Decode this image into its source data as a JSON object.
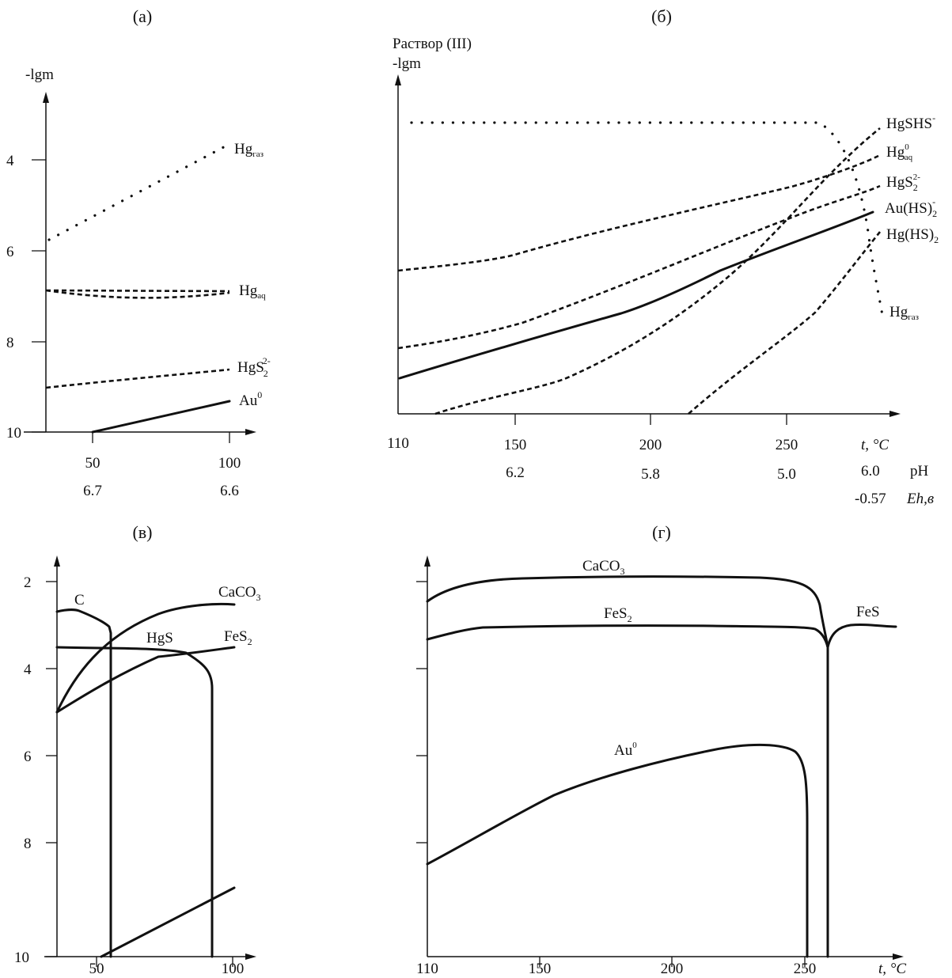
{
  "chart_data": [
    {
      "panel": "(a)",
      "type": "line",
      "ylabel": "-lgm",
      "y_ticks": [
        "4",
        "6",
        "8",
        "10"
      ],
      "x_ticks": [
        "50",
        "100"
      ],
      "ph_ticks": [
        "6.7",
        "6.6"
      ],
      "ylim": [
        10,
        3
      ],
      "series": [
        {
          "label": "Hg",
          "sub": "газ",
          "sup": "",
          "style": "dotted",
          "x": [
            30,
            100
          ],
          "y": [
            6.3,
            3.8
          ]
        },
        {
          "label": "Hg",
          "sub": "aq",
          "sup": "",
          "style": "dashed",
          "x": [
            30,
            100
          ],
          "y": [
            7.35,
            6.95
          ]
        },
        {
          "label": "HgS",
          "sub": "2",
          "sup": "2-",
          "style": "dashed",
          "x": [
            30,
            100
          ],
          "y": [
            9.0,
            8.65
          ]
        },
        {
          "label": "Au",
          "sub": "",
          "sup": "0",
          "style": "solid",
          "x": [
            50,
            100
          ],
          "y": [
            10.0,
            9.35
          ]
        }
      ]
    },
    {
      "panel": "(б)",
      "type": "line",
      "header": "Раствор (III)",
      "ylabel": "-lgm",
      "x_ticks": [
        "110",
        "150",
        "200",
        "250"
      ],
      "x_unit": "t, °C",
      "ph_ticks": [
        "6.2",
        "5.8",
        "5.0"
      ],
      "ph_end": "6.0",
      "ph_label": "pH",
      "eh_value": "-0.57",
      "eh_label": "Eh,в",
      "series": [
        {
          "label": "HgSHS",
          "sub": "",
          "sup": "-",
          "style": "dashed"
        },
        {
          "label": "Hg",
          "sub": "aq",
          "sup": "0",
          "style": "dashed"
        },
        {
          "label": "HgS",
          "sub": "2",
          "sup": "2-",
          "style": "dashed"
        },
        {
          "label": "Au(HS)",
          "sub": "2",
          "sup": "-",
          "style": "solid"
        },
        {
          "label": "Hg(HS)",
          "sub": "2",
          "sup": "",
          "style": "dashed"
        },
        {
          "label": "Hg",
          "sub": "газ",
          "sup": "",
          "style": "dotted"
        }
      ]
    },
    {
      "panel": "(в)",
      "type": "line",
      "y_ticks": [
        "2",
        "4",
        "6",
        "8",
        "10"
      ],
      "x_ticks": [
        "50",
        "100"
      ],
      "ylim": [
        10,
        1.5
      ],
      "series": [
        {
          "label": "C",
          "style": "solid"
        },
        {
          "label": "CaCO",
          "sub": "3",
          "style": "solid"
        },
        {
          "label": "HgS",
          "style": "solid"
        },
        {
          "label": "FeS",
          "sub": "2",
          "style": "solid"
        }
      ]
    },
    {
      "panel": "(г)",
      "type": "line",
      "x_ticks": [
        "110",
        "150",
        "200",
        "250"
      ],
      "x_unit": "t, °C",
      "ylim": [
        10,
        1.5
      ],
      "series": [
        {
          "label": "CaCO",
          "sub": "3",
          "style": "solid"
        },
        {
          "label": "FeS",
          "sub": "2",
          "style": "solid"
        },
        {
          "label": "FeS",
          "style": "solid"
        },
        {
          "label": "Au",
          "sup": "0",
          "style": "solid"
        }
      ]
    }
  ]
}
